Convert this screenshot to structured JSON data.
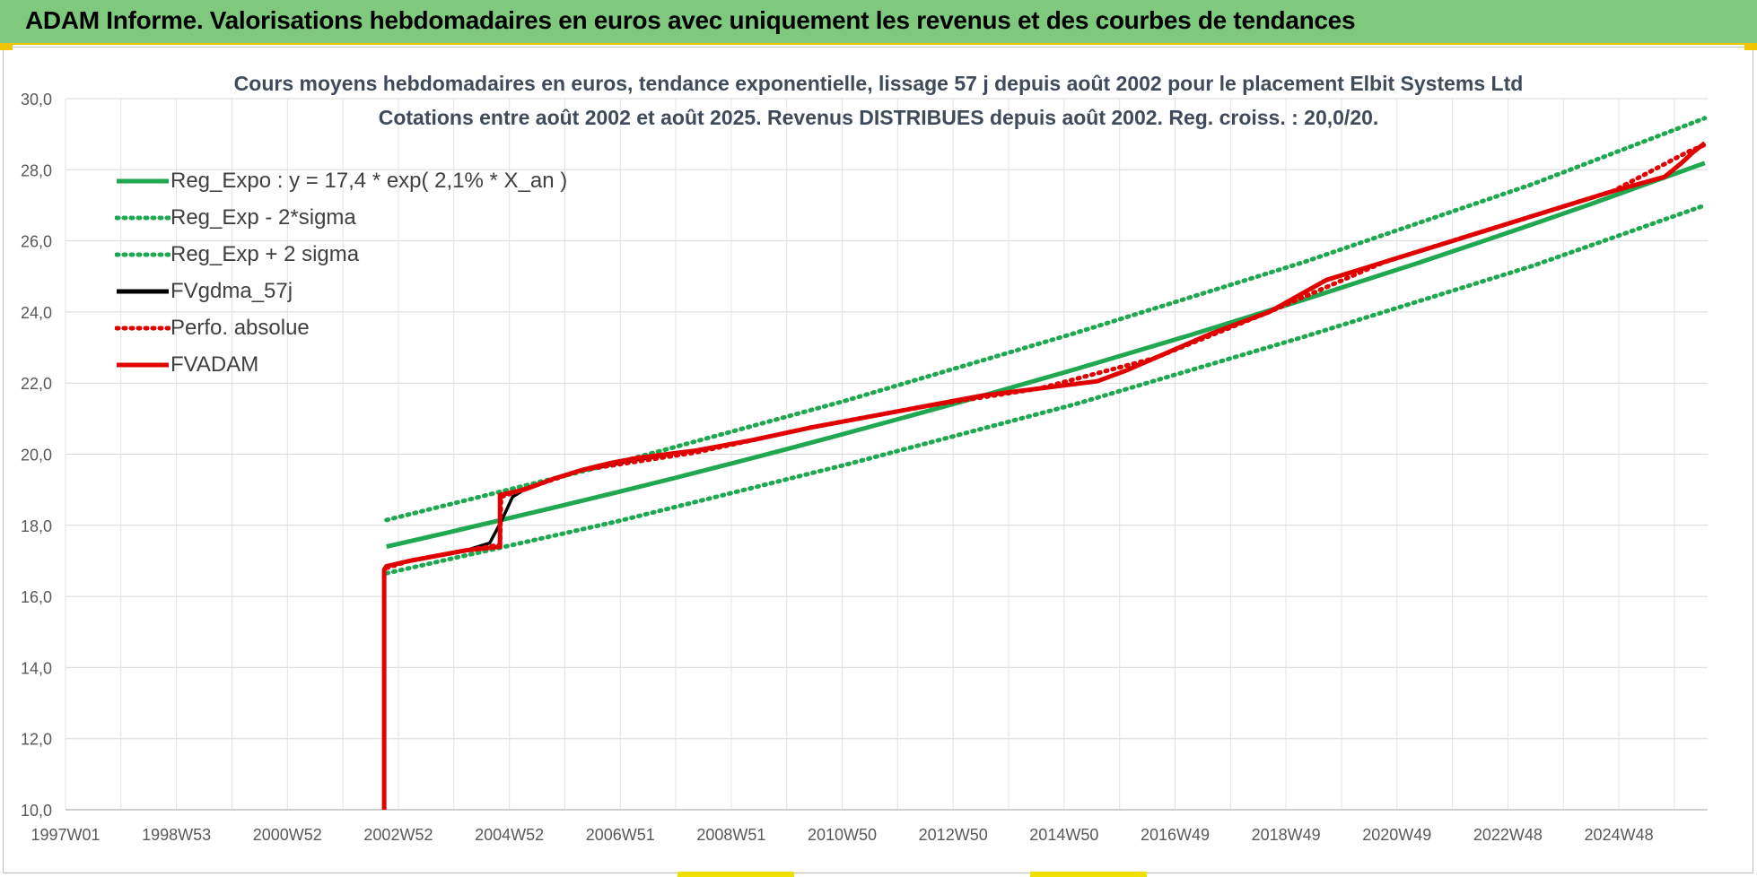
{
  "banner": {
    "title": "ADAM Informe. Valorisations hebdomadaires en euros avec uniquement les revenus et des courbes de tendances"
  },
  "chart_data": {
    "type": "line",
    "title": "Cours moyens hebdomadaires en euros, tendance exponentielle, lissage 57 j depuis août 2002 pour le placement Elbit Systems Ltd",
    "subtitle": "Cotations entre août 2002 et août 2025. Revenus DISTRIBUES depuis août 2002. Reg. croiss. : 20,0/20.",
    "xlabel": "",
    "ylabel": "",
    "x_tick_labels": [
      "1997W01",
      "1998W53",
      "2000W52",
      "2002W52",
      "2004W52",
      "2006W51",
      "2008W51",
      "2010W50",
      "2012W50",
      "2014W50",
      "2016W49",
      "2018W49",
      "2020W49",
      "2022W48",
      "2024W48"
    ],
    "x_range": [
      1997.0,
      2025.65
    ],
    "ylim": [
      10,
      30
    ],
    "y_ticks": [
      "10,0",
      "12,0",
      "14,0",
      "16,0",
      "18,0",
      "20,0",
      "22,0",
      "24,0",
      "26,0",
      "28,0",
      "30,0"
    ],
    "grid": true,
    "legend_position": "top-left",
    "series": [
      {
        "name": "Reg_Expo : y = 17,4 * exp( 2,1% *  X_an )",
        "color": "#1fa84f",
        "style": "solid",
        "x": [
          2002.6,
          2003.6,
          2004.6,
          2005.6,
          2006.6,
          2007.6,
          2008.6,
          2009.6,
          2010.6,
          2011.6,
          2012.6,
          2013.6,
          2014.6,
          2015.6,
          2016.6,
          2017.6,
          2018.6,
          2019.6,
          2020.6,
          2021.6,
          2022.6,
          2023.6,
          2024.6,
          2025.6
        ],
        "values": [
          17.4,
          17.77,
          18.15,
          18.53,
          18.92,
          19.32,
          19.73,
          20.15,
          20.58,
          21.02,
          21.46,
          21.92,
          22.38,
          22.86,
          23.34,
          23.84,
          24.34,
          24.86,
          25.38,
          25.92,
          26.47,
          27.03,
          27.61,
          28.19
        ]
      },
      {
        "name": "Reg_Exp - 2*sigma",
        "color": "#1fa84f",
        "style": "dotted",
        "x": [
          2002.6,
          2006.6,
          2010.6,
          2014.6,
          2018.6,
          2022.6,
          2025.6
        ],
        "values": [
          16.65,
          18.1,
          19.7,
          21.4,
          23.3,
          25.3,
          27.0
        ]
      },
      {
        "name": "Reg_Exp + 2 sigma",
        "color": "#1fa84f",
        "style": "dotted",
        "x": [
          2002.6,
          2006.6,
          2010.6,
          2014.6,
          2018.6,
          2022.6,
          2025.6
        ],
        "values": [
          18.15,
          19.75,
          21.5,
          23.4,
          25.4,
          27.6,
          29.45
        ]
      },
      {
        "name": "FVgdma_57j",
        "color": "#000000",
        "style": "solid",
        "x": [
          2002.6,
          2002.7,
          2003.0,
          2003.5,
          2004.0,
          2004.4,
          2004.6,
          2004.8,
          2005.0,
          2005.5,
          2006.0,
          2006.5,
          2007.0,
          2008.0,
          2009.0,
          2010.0,
          2011.0,
          2012.0,
          2013.0,
          2014.0,
          2015.0,
          2015.5,
          2016.0,
          2017.0,
          2018.0,
          2019.0,
          2020.0,
          2021.0,
          2022.0,
          2023.0,
          2024.0,
          2024.9,
          2025.2,
          2025.4,
          2025.6
        ],
        "values": [
          16.85,
          16.9,
          17.0,
          17.15,
          17.3,
          17.5,
          18.1,
          18.8,
          19.0,
          19.3,
          19.55,
          19.7,
          19.85,
          20.1,
          20.4,
          20.75,
          21.05,
          21.35,
          21.65,
          21.85,
          22.05,
          22.35,
          22.7,
          23.4,
          24.0,
          24.9,
          25.4,
          25.9,
          26.4,
          26.9,
          27.4,
          27.8,
          28.2,
          28.5,
          28.75
        ]
      },
      {
        "name": "Perfo. absolue",
        "color": "#e00000",
        "style": "dotted",
        "x": [
          2002.6,
          2003.0,
          2004.0,
          2004.58,
          2004.6,
          2006.0,
          2008.0,
          2010.0,
          2012.0,
          2014.0,
          2016.0,
          2018.0,
          2020.0,
          2022.0,
          2024.0,
          2025.3,
          2025.6
        ],
        "values": [
          16.8,
          17.0,
          17.3,
          17.45,
          18.8,
          19.55,
          20.05,
          20.75,
          21.35,
          21.85,
          22.7,
          24.0,
          25.4,
          26.4,
          27.4,
          28.5,
          28.7
        ]
      },
      {
        "name": "FVADAM",
        "color": "#e00000",
        "style": "solid",
        "x": [
          2002.56,
          2002.56,
          2002.6,
          2003.0,
          2003.5,
          2004.0,
          2004.58,
          2004.58,
          2005.0,
          2005.5,
          2006.0,
          2006.5,
          2007.0,
          2008.0,
          2009.0,
          2010.0,
          2011.0,
          2012.0,
          2013.0,
          2014.0,
          2015.0,
          2015.5,
          2016.0,
          2017.0,
          2018.0,
          2019.0,
          2020.0,
          2021.0,
          2022.0,
          2023.0,
          2024.0,
          2024.9,
          2025.2,
          2025.4,
          2025.6
        ],
        "values": [
          10.0,
          16.75,
          16.85,
          17.0,
          17.15,
          17.3,
          17.4,
          18.85,
          19.0,
          19.3,
          19.55,
          19.75,
          19.9,
          20.1,
          20.4,
          20.75,
          21.05,
          21.35,
          21.65,
          21.85,
          22.05,
          22.35,
          22.7,
          23.4,
          24.0,
          24.9,
          25.4,
          25.9,
          26.4,
          26.9,
          27.4,
          27.8,
          28.2,
          28.5,
          28.75
        ]
      }
    ]
  }
}
